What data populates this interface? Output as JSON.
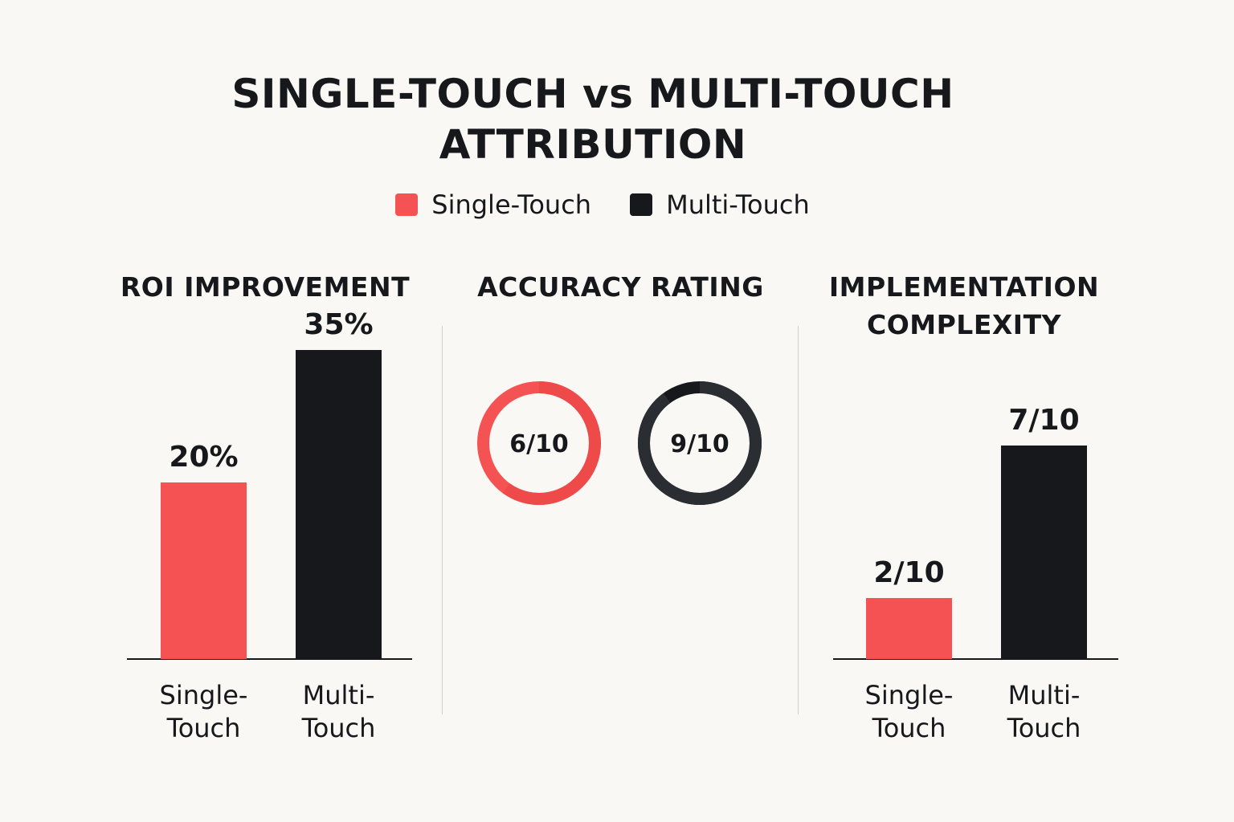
{
  "title_line1": "SINGLE-TOUCH vs MULTI-TOUCH",
  "title_line2": "ATTRIBUTION",
  "legend": [
    {
      "label": "Single-Touch",
      "color": "#f55353"
    },
    {
      "label": "Multi-Touch",
      "color": "#16181c"
    }
  ],
  "colors": {
    "single": "#f55353",
    "multi": "#16181c",
    "background": "#faf8f5"
  },
  "chart_data": [
    {
      "type": "bar",
      "title": "ROI IMPROVEMENT",
      "categories": [
        "Single-\nTouch",
        "Multi-\nTouch"
      ],
      "values": [
        20,
        35
      ],
      "value_labels": [
        "20%",
        "35%"
      ],
      "unit": "%"
    },
    {
      "type": "pie",
      "title": "ACCURACY RATING",
      "categories": [
        "Single-Touch",
        "Multi-Touch"
      ],
      "values": [
        6,
        9
      ],
      "max": 10,
      "value_labels": [
        "6/10",
        "9/10"
      ]
    },
    {
      "type": "bar",
      "title_lines": [
        "IMPLEMENTATION",
        "COMPLEXITY"
      ],
      "categories": [
        "Single-\nTouch",
        "Multi-\nTouch"
      ],
      "values": [
        2,
        7
      ],
      "max": 10,
      "value_labels": [
        "2/10",
        "7/10"
      ]
    }
  ]
}
